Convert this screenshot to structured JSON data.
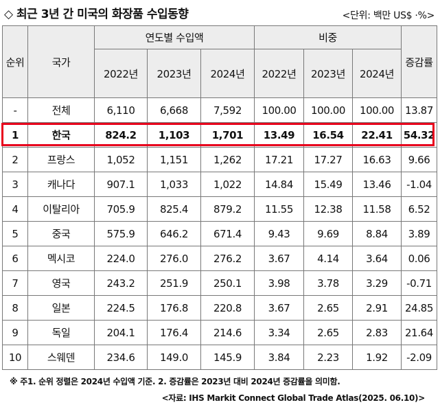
{
  "title": "◇ 최근 3년 간 미국의 화장품 수입동향",
  "unit": "<단위: 백만 US$ ·%>",
  "headers": {
    "rank": "순위",
    "country": "국가",
    "import_group": "연도별 수입액",
    "share_group": "비중",
    "growth": "증감률",
    "import_years": [
      "2022년",
      "2023년",
      "2024년"
    ],
    "share_years": [
      "2022년",
      "2023년",
      "2024년"
    ]
  },
  "rows": [
    [
      "-",
      "전체",
      "6,110",
      "6,668",
      "7,592",
      "100.00",
      "100.00",
      "100.00",
      "13.87"
    ],
    [
      "1",
      "한국",
      "824.2",
      "1,103",
      "1,701",
      "13.49",
      "16.54",
      "22.41",
      "54.32"
    ],
    [
      "2",
      "프랑스",
      "1,052",
      "1,151",
      "1,262",
      "17.21",
      "17.27",
      "16.63",
      "9.66"
    ],
    [
      "3",
      "캐나다",
      "907.1",
      "1,033",
      "1,022",
      "14.84",
      "15.49",
      "13.46",
      "-1.04"
    ],
    [
      "4",
      "이탈리아",
      "705.9",
      "825.4",
      "879.2",
      "11.55",
      "12.38",
      "11.58",
      "6.52"
    ],
    [
      "5",
      "중국",
      "575.9",
      "646.2",
      "671.4",
      "9.43",
      "9.69",
      "8.84",
      "3.89"
    ],
    [
      "6",
      "멕시코",
      "224.0",
      "276.0",
      "276.2",
      "3.67",
      "4.14",
      "3.64",
      "0.06"
    ],
    [
      "7",
      "영국",
      "243.2",
      "251.9",
      "250.1",
      "3.98",
      "3.78",
      "3.29",
      "-0.71"
    ],
    [
      "8",
      "일본",
      "224.5",
      "176.8",
      "220.8",
      "3.67",
      "2.65",
      "2.91",
      "24.85"
    ],
    [
      "9",
      "독일",
      "204.1",
      "176.4",
      "214.6",
      "3.34",
      "2.65",
      "2.83",
      "21.64"
    ],
    [
      "10",
      "스웨덴",
      "234.6",
      "149.0",
      "145.9",
      "3.84",
      "2.23",
      "1.92",
      "-2.09"
    ]
  ],
  "highlight_color": "#e8001c",
  "note": "※ 주1. 순위 정렬은 2024년 수입액 기준. 2. 증감률은 2023년 대비 2024년 증감률을 의미함.",
  "source": "<자료: IHS Markit Connect Global Trade Atlas(2025. 06.10)>"
}
